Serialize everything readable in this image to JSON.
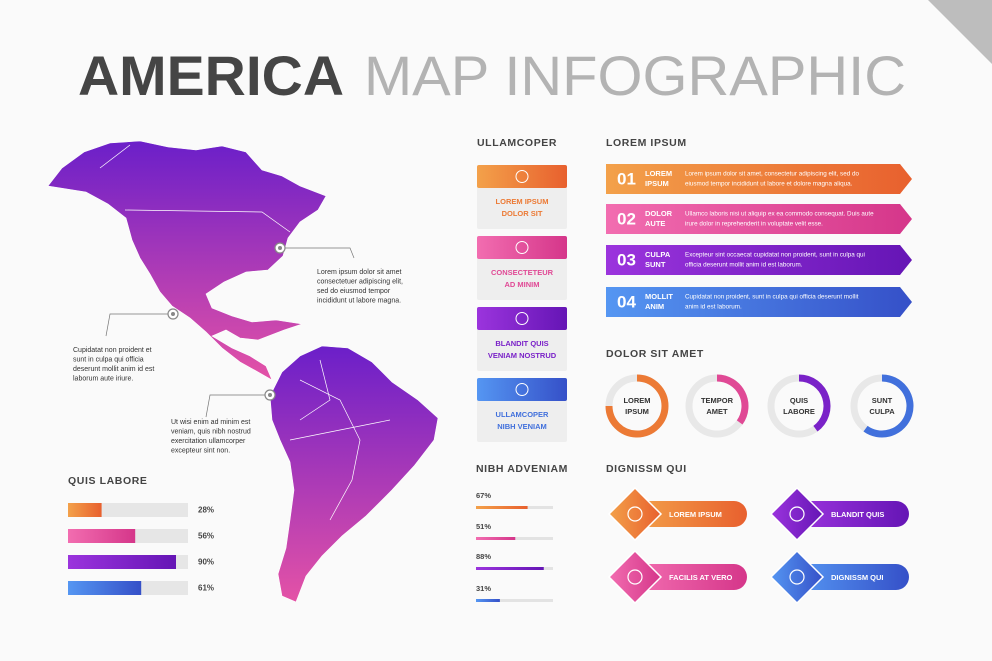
{
  "title": {
    "bold": "AMERICA",
    "light": "MAP INFOGRAPHIC"
  },
  "map_notes": [
    [
      "Lorem ipsum dolor sit amet",
      "consectetuer adipiscing elit,",
      "sed do eiusmod tempor",
      "incididunt ut labore magna."
    ],
    [
      "Cupidatat non proident et",
      "sunt in culpa qui officia",
      "deserunt mollit anim id est",
      "laborum aute iriure."
    ],
    [
      "Ut wisi enim ad minim est",
      "veniam, quis nibh nostrud",
      "exercitation ullamcorper",
      "excepteur sint non."
    ]
  ],
  "quis_labore": {
    "title": "QUIS LABORE",
    "bars": [
      {
        "value": 28,
        "label": "28%"
      },
      {
        "value": 56,
        "label": "56%"
      },
      {
        "value": 90,
        "label": "90%"
      },
      {
        "value": 61,
        "label": "61%"
      }
    ]
  },
  "ullamcoper": {
    "title": "ULLAMCOPER",
    "cards": [
      [
        "LOREM IPSUM",
        "DOLOR SIT"
      ],
      [
        "CONSECTETEUR",
        "AD MINIM"
      ],
      [
        "BLANDIT QUIS",
        "VENIAM NOSTRUD"
      ],
      [
        "ULLAMCOPER",
        "NIBH VENIAM"
      ]
    ]
  },
  "lorem_ipsum": {
    "title": "LOREM IPSUM",
    "items": [
      {
        "number": "01",
        "title": [
          "LOREM",
          "IPSUM"
        ],
        "text": [
          "Lorem ipsum dolor sit amet, consectetur adipiscing elit, sed do",
          "eiusmod tempor incididunt ut labore et dolore magna aliqua."
        ]
      },
      {
        "number": "02",
        "title": [
          "DOLOR",
          "AUTE"
        ],
        "text": [
          "Ullamco laboris nisi ut aliquip ex ea commodo consequat. Duis aute",
          "irure dolor in reprehenderit in voluptate velit esse."
        ]
      },
      {
        "number": "03",
        "title": [
          "CULPA",
          "SUNT"
        ],
        "text": [
          "Excepteur sint occaecat cupidatat non proident, sunt in culpa qui",
          "officia deserunt mollit anim id est laborum."
        ]
      },
      {
        "number": "04",
        "title": [
          "MOLLIT",
          "ANIM"
        ],
        "text": [
          "Cupidatat non proident, sunt in culpa qui officia deserunt mollit",
          "anim id est laborum."
        ]
      }
    ]
  },
  "dolor_sit_amet": {
    "title": "DOLOR SIT AMET",
    "rings": [
      {
        "label": [
          "LOREM",
          "IPSUM"
        ],
        "value": 75
      },
      {
        "label": [
          "TEMPOR",
          "AMET"
        ],
        "value": 35
      },
      {
        "label": [
          "QUIS",
          "LABORE"
        ],
        "value": 40
      },
      {
        "label": [
          "SUNT",
          "CULPA"
        ],
        "value": 60
      }
    ]
  },
  "nibh_adveniam": {
    "title": "NIBH ADVENIAM",
    "bars": [
      {
        "value": 67,
        "label": "67%"
      },
      {
        "value": 51,
        "label": "51%"
      },
      {
        "value": 88,
        "label": "88%"
      },
      {
        "value": 31,
        "label": "31%"
      }
    ]
  },
  "dignissm_qui": {
    "title": "DIGNISSM QUI",
    "buttons": [
      "LOREM IPSUM",
      "BLANDIT QUIS",
      "FACILIS AT VERO",
      "DIGNISSM QUI"
    ]
  }
}
